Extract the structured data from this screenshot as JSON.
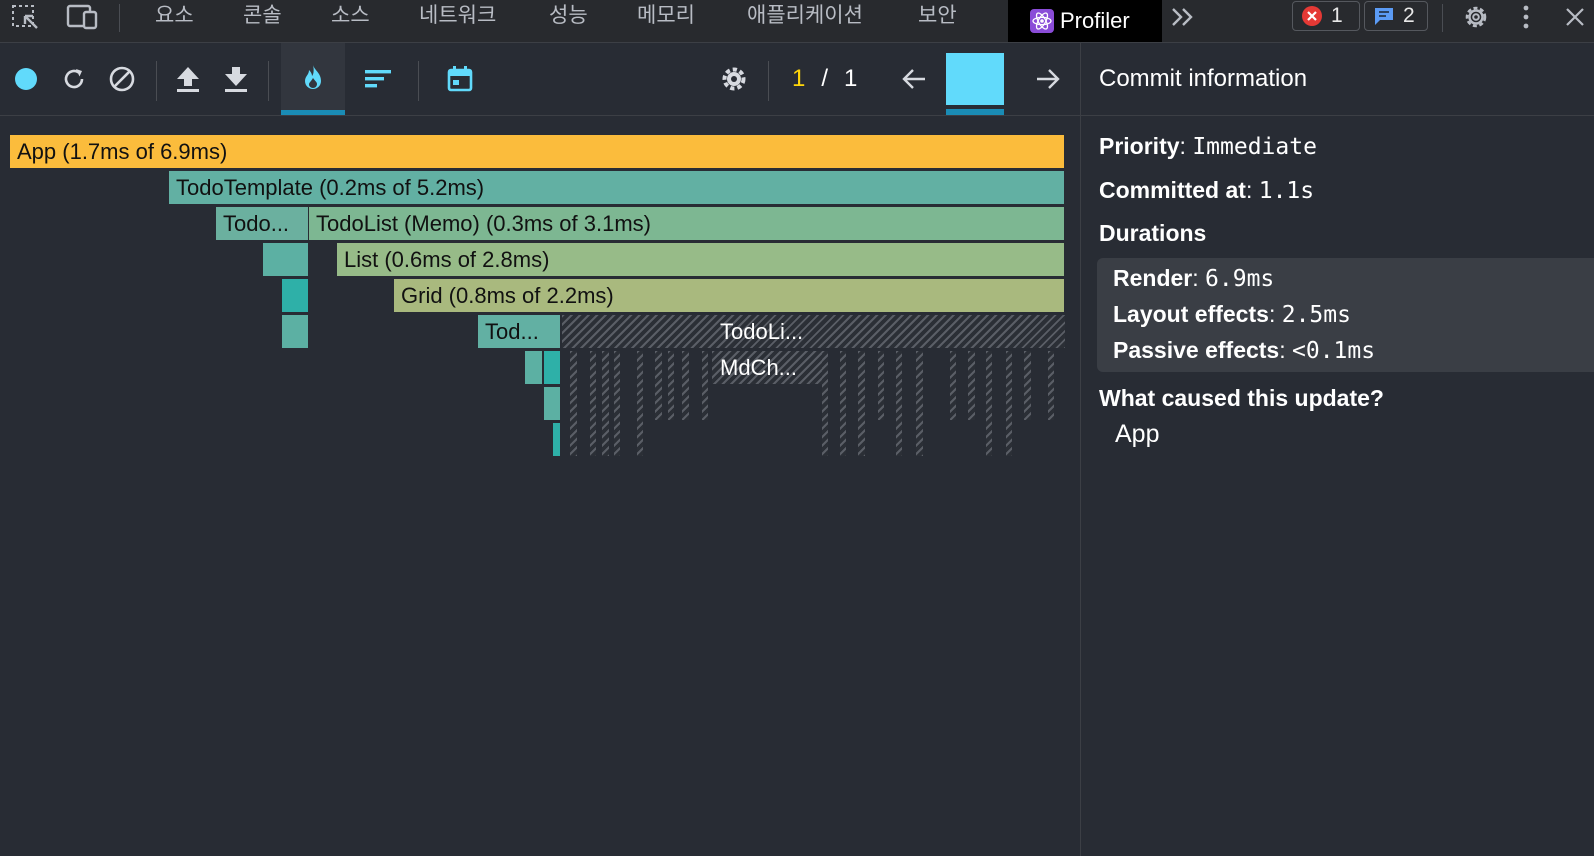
{
  "devtools": {
    "tabs": [
      "요소",
      "콘솔",
      "소스",
      "네트워크",
      "성능",
      "메모리",
      "애플리케이션",
      "보안"
    ],
    "active_tab": "Profiler",
    "error_count": "1",
    "message_count": "2",
    "icons": [
      "inspect-element-icon",
      "device-toolbar-icon",
      "more-tabs-chevron-icon",
      "error-icon",
      "message-icon",
      "gear-icon",
      "kebab-menu-icon",
      "close-icon"
    ]
  },
  "toolbar": {
    "commit_current": "1",
    "commit_separator": "/",
    "commit_total": "1",
    "accent_color": "#61dafb",
    "icons": [
      "record-icon",
      "reload-icon",
      "clear-icon",
      "upload-icon",
      "download-icon",
      "flame-icon",
      "ranked-icon",
      "timeline-icon",
      "settings-gear-icon",
      "prev-arrow-icon",
      "next-arrow-icon"
    ]
  },
  "flamegraph": {
    "bars": [
      {
        "label": "App (1.7ms of 6.9ms)",
        "color": "#fbbc3c"
      },
      {
        "label": "TodoTemplate (0.2ms of 5.2ms)",
        "color": "#62b0a3"
      },
      {
        "label": "Todo...",
        "color": "#6bb09f"
      },
      {
        "label": "TodoList (Memo) (0.3ms of 3.1ms)",
        "color": "#7db792"
      },
      {
        "label": "List (0.6ms of 2.8ms)",
        "color": "#97bb88"
      },
      {
        "label": "Grid (0.8ms of 2.2ms)",
        "color": "#a9b97e"
      },
      {
        "label": "Tod...",
        "color": "#62b0a3"
      }
    ],
    "hatched_labels": [
      "TodoLi...",
      "MdCh..."
    ]
  },
  "commit_info": {
    "title": "Commit information",
    "priority_label": "Priority",
    "priority_value": "Immediate",
    "committed_label": "Committed at",
    "committed_value": "1.1s",
    "durations_label": "Durations",
    "render_label": "Render",
    "render_value": "6.9ms",
    "layout_label": "Layout effects",
    "layout_value": "2.5ms",
    "passive_label": "Passive effects",
    "passive_value": "<0.1ms",
    "cause_label": "What caused this update?",
    "cause_value": "App"
  }
}
